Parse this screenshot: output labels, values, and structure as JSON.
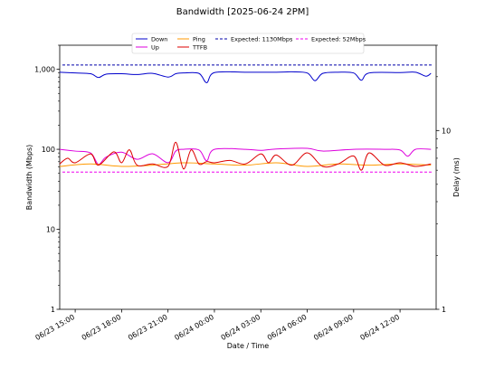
{
  "chart_data": {
    "type": "line",
    "title": "Bandwidth [2025-06-24 2PM]",
    "xlabel": "Date / Time",
    "ylabel_left": "Bandwidth (Mbps)",
    "ylabel_right": "Delay (ms)",
    "y_scale_left": "log",
    "y_scale_right": "log",
    "ylim_left": [
      1,
      2000
    ],
    "ylim_right": [
      1,
      30
    ],
    "y_ticks_left": [
      {
        "value": 1,
        "label": "1"
      },
      {
        "value": 10,
        "label": "10"
      },
      {
        "value": 100,
        "label": "100"
      },
      {
        "value": 1000,
        "label": "1,000"
      }
    ],
    "y_ticks_right": [
      {
        "value": 1,
        "label": "1"
      },
      {
        "value": 10,
        "label": "10"
      }
    ],
    "x_range": [
      "2025-06-23 14:00",
      "2025-06-24 14:20"
    ],
    "x_ticks": [
      {
        "value": "2025-06-23 15:00",
        "label": "06/23 15:00"
      },
      {
        "value": "2025-06-23 18:00",
        "label": "06/23 18:00"
      },
      {
        "value": "2025-06-23 21:00",
        "label": "06/23 21:00"
      },
      {
        "value": "2025-06-24 00:00",
        "label": "06/24 00:00"
      },
      {
        "value": "2025-06-24 03:00",
        "label": "06/24 03:00"
      },
      {
        "value": "2025-06-24 06:00",
        "label": "06/24 06:00"
      },
      {
        "value": "2025-06-24 09:00",
        "label": "06/24 09:00"
      },
      {
        "value": "2025-06-24 12:00",
        "label": "06/24 12:00"
      }
    ],
    "grid": false,
    "legend_placement": "top-center",
    "series": [
      {
        "name": "Down",
        "color": "#0000cc",
        "axis": "left",
        "style": "solid",
        "x": [
          "2025-06-23 14:00",
          "2025-06-23 15:00",
          "2025-06-23 16:00",
          "2025-06-23 16:30",
          "2025-06-23 17:00",
          "2025-06-23 18:00",
          "2025-06-23 19:00",
          "2025-06-23 20:00",
          "2025-06-23 21:00",
          "2025-06-23 21:30",
          "2025-06-23 22:00",
          "2025-06-23 23:00",
          "2025-06-23 23:30",
          "2025-06-24 00:00",
          "2025-06-24 02:00",
          "2025-06-24 04:00",
          "2025-06-24 05:00",
          "2025-06-24 06:00",
          "2025-06-24 06:30",
          "2025-06-24 07:00",
          "2025-06-24 08:00",
          "2025-06-24 09:00",
          "2025-06-24 09:30",
          "2025-06-24 10:00",
          "2025-06-24 12:00",
          "2025-06-24 13:00",
          "2025-06-24 13:40",
          "2025-06-24 14:00"
        ],
        "y": [
          920,
          900,
          880,
          790,
          870,
          880,
          860,
          890,
          800,
          880,
          900,
          890,
          680,
          910,
          920,
          920,
          930,
          900,
          720,
          890,
          920,
          900,
          730,
          900,
          910,
          920,
          820,
          890
        ]
      },
      {
        "name": "Up",
        "color": "#dd00dd",
        "axis": "left",
        "style": "solid",
        "x": [
          "2025-06-23 14:00",
          "2025-06-23 15:00",
          "2025-06-23 16:00",
          "2025-06-23 16:30",
          "2025-06-23 17:00",
          "2025-06-23 18:00",
          "2025-06-23 19:00",
          "2025-06-23 20:00",
          "2025-06-23 21:00",
          "2025-06-23 21:30",
          "2025-06-23 22:00",
          "2025-06-23 23:00",
          "2025-06-23 23:30",
          "2025-06-24 00:00",
          "2025-06-24 02:00",
          "2025-06-24 03:00",
          "2025-06-24 04:00",
          "2025-06-24 06:00",
          "2025-06-24 07:00",
          "2025-06-24 09:00",
          "2025-06-24 11:00",
          "2025-06-24 12:00",
          "2025-06-24 12:30",
          "2025-06-24 13:00",
          "2025-06-24 14:00"
        ],
        "y": [
          100,
          95,
          90,
          65,
          80,
          92,
          75,
          88,
          68,
          95,
          100,
          98,
          72,
          100,
          100,
          97,
          101,
          103,
          95,
          100,
          100,
          98,
          82,
          100,
          100
        ]
      },
      {
        "name": "Ping",
        "color": "#ff9900",
        "axis": "right",
        "style": "solid",
        "x": [
          "2025-06-23 14:00",
          "2025-06-23 16:00",
          "2025-06-23 18:00",
          "2025-06-23 20:00",
          "2025-06-23 22:00",
          "2025-06-24 00:00",
          "2025-06-24 02:00",
          "2025-06-24 04:00",
          "2025-06-24 06:00",
          "2025-06-24 08:00",
          "2025-06-24 10:00",
          "2025-06-24 12:00",
          "2025-06-24 14:00"
        ],
        "y": [
          6.3,
          6.5,
          6.3,
          6.4,
          6.6,
          6.5,
          6.4,
          6.6,
          6.3,
          6.5,
          6.4,
          6.5,
          6.4
        ]
      },
      {
        "name": "TTFB",
        "color": "#dd0000",
        "axis": "right",
        "style": "solid",
        "x": [
          "2025-06-23 14:00",
          "2025-06-23 14:30",
          "2025-06-23 15:00",
          "2025-06-23 16:00",
          "2025-06-23 16:30",
          "2025-06-23 17:30",
          "2025-06-23 18:00",
          "2025-06-23 18:30",
          "2025-06-23 19:00",
          "2025-06-23 20:00",
          "2025-06-23 21:00",
          "2025-06-23 21:30",
          "2025-06-23 22:00",
          "2025-06-23 22:30",
          "2025-06-23 23:00",
          "2025-06-23 23:30",
          "2025-06-24 00:00",
          "2025-06-24 01:00",
          "2025-06-24 02:00",
          "2025-06-24 03:00",
          "2025-06-24 03:30",
          "2025-06-24 04:00",
          "2025-06-24 05:00",
          "2025-06-24 06:00",
          "2025-06-24 07:00",
          "2025-06-24 08:00",
          "2025-06-24 09:00",
          "2025-06-24 09:30",
          "2025-06-24 10:00",
          "2025-06-24 11:00",
          "2025-06-24 12:00",
          "2025-06-24 13:00",
          "2025-06-24 14:00"
        ],
        "y": [
          6.5,
          7.0,
          6.6,
          7.4,
          6.4,
          7.6,
          6.6,
          7.8,
          6.4,
          6.5,
          6.3,
          8.6,
          6.1,
          7.8,
          6.5,
          6.7,
          6.6,
          6.8,
          6.5,
          7.4,
          6.6,
          7.3,
          6.4,
          7.5,
          6.3,
          6.5,
          7.2,
          6.0,
          7.5,
          6.4,
          6.6,
          6.3,
          6.5
        ]
      }
    ],
    "reference_lines": [
      {
        "name": "Expected: 1130Mbps",
        "value": 1130,
        "color": "#0000aa",
        "axis": "left",
        "style": "dashed"
      },
      {
        "name": "Expected: 52Mbps",
        "value": 52,
        "color": "#ee00ee",
        "axis": "left",
        "style": "dashed"
      }
    ]
  }
}
